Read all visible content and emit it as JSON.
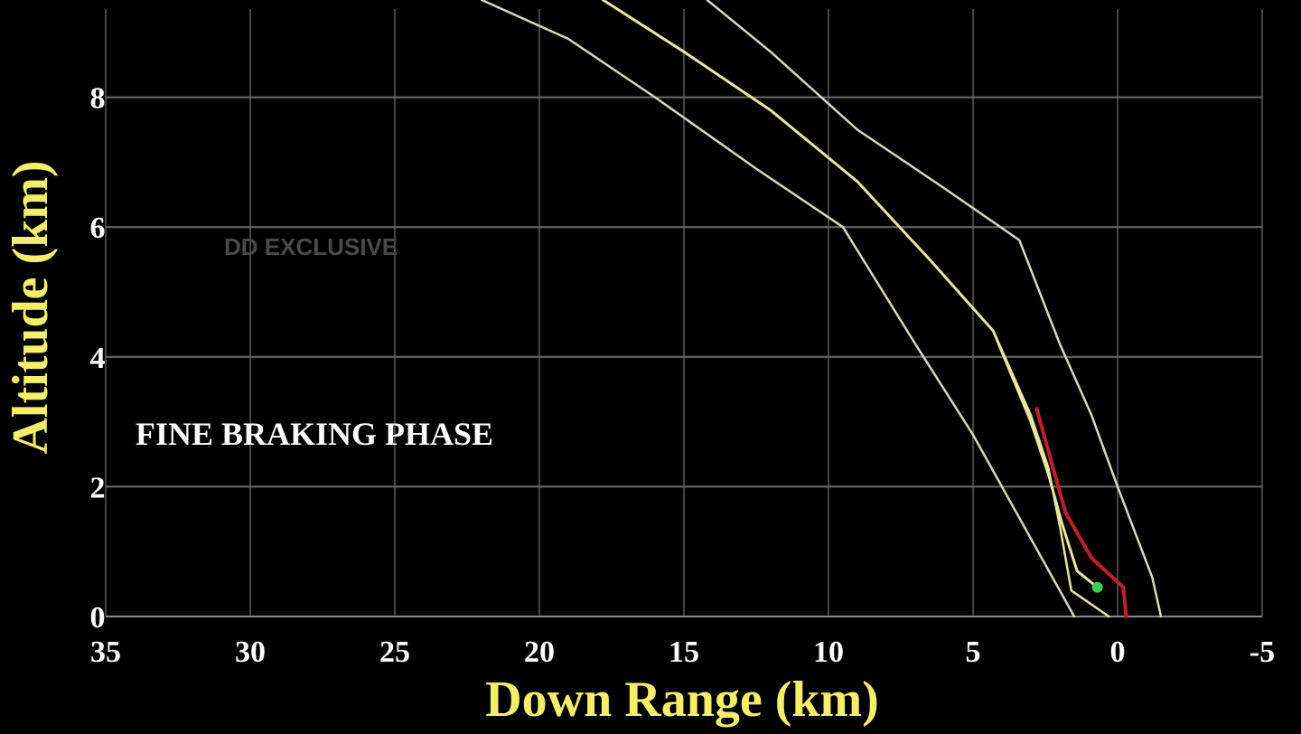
{
  "chart_data": {
    "type": "line",
    "title": "",
    "xlabel": "Down Range (km)",
    "ylabel": "Altitude (km)",
    "xlim": [
      35,
      -5
    ],
    "ylim": [
      0,
      9.5
    ],
    "x_ticks": [
      35,
      30,
      25,
      20,
      15,
      10,
      5,
      0,
      -5
    ],
    "y_ticks": [
      0,
      2,
      4,
      6,
      8
    ],
    "grid": true,
    "annotations": [
      "FINE BRAKING PHASE"
    ],
    "watermark": "DD EXCLUSIVE",
    "series": [
      {
        "role": "lower-bound",
        "color": "#d9d9b8",
        "points": [
          [
            22,
            9.5
          ],
          [
            19,
            8.9
          ],
          [
            16,
            8.0
          ],
          [
            12.5,
            6.9
          ],
          [
            9.5,
            6.0
          ],
          [
            7,
            4.2
          ],
          [
            5,
            2.8
          ],
          [
            3,
            1.2
          ],
          [
            1.5,
            0.0
          ]
        ]
      },
      {
        "role": "nominal",
        "color": "#e8e6a0",
        "points": [
          [
            17.8,
            9.5
          ],
          [
            15,
            8.7
          ],
          [
            12,
            7.8
          ],
          [
            9,
            6.7
          ],
          [
            6.5,
            5.5
          ],
          [
            4.3,
            4.4
          ],
          [
            3,
            3.1
          ],
          [
            2.4,
            2.3
          ],
          [
            2.0,
            1.4
          ],
          [
            1.6,
            0.4
          ],
          [
            0.3,
            0.0
          ]
        ]
      },
      {
        "role": "upper-bound",
        "color": "#d9d9b8",
        "points": [
          [
            14.2,
            9.5
          ],
          [
            12,
            8.7
          ],
          [
            9,
            7.5
          ],
          [
            6,
            6.6
          ],
          [
            3.4,
            5.8
          ],
          [
            2.0,
            4.2
          ],
          [
            0.9,
            3.1
          ],
          [
            0,
            2.0
          ],
          [
            -1.2,
            0.6
          ],
          [
            -1.5,
            0.0
          ]
        ]
      },
      {
        "role": "actual-trajectory",
        "color": "#e8e6a0",
        "points": [
          [
            17.8,
            9.5
          ],
          [
            15,
            8.7
          ],
          [
            12,
            7.8
          ],
          [
            9,
            6.7
          ],
          [
            6.5,
            5.5
          ],
          [
            4.3,
            4.4
          ],
          [
            3,
            3.0
          ],
          [
            2.4,
            2.2
          ],
          [
            1.9,
            1.4
          ],
          [
            1.4,
            0.7
          ],
          [
            0.7,
            0.45
          ]
        ]
      },
      {
        "role": "predicted-segment",
        "color": "#c0202a",
        "points": [
          [
            2.8,
            3.2
          ],
          [
            2.3,
            2.4
          ],
          [
            1.8,
            1.6
          ],
          [
            0.9,
            0.9
          ],
          [
            -0.2,
            0.45
          ],
          [
            -0.3,
            0.0
          ]
        ]
      }
    ],
    "current_position": {
      "x": 0.7,
      "y": 0.45,
      "color": "#37d24a"
    }
  }
}
